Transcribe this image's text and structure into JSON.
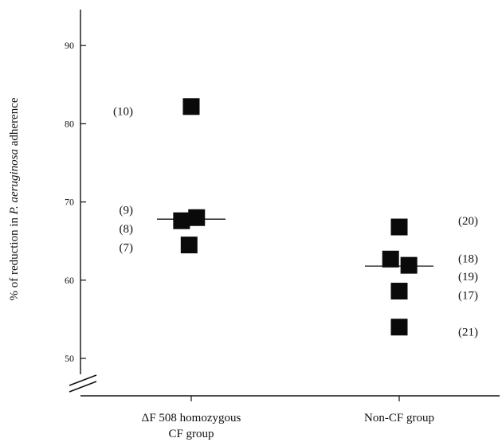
{
  "chart_data": {
    "type": "scatter",
    "title": "",
    "ylabel_parts": [
      "% of reduction in ",
      "P. aeruginosa",
      " adherence"
    ],
    "xlabel": "",
    "ylim": [
      50,
      90
    ],
    "yticks": [
      50,
      60,
      70,
      80,
      90
    ],
    "axis_break": true,
    "grid": false,
    "categories": [
      {
        "lines": [
          "ΔF 508 homozygous",
          "CF group"
        ]
      },
      {
        "lines": [
          "Non-CF group"
        ]
      }
    ],
    "series": [
      {
        "category": 0,
        "points": [
          {
            "y": 82.2,
            "offset": 0.0
          },
          {
            "y": 67.6,
            "offset": -0.45
          },
          {
            "y": 68.0,
            "offset": 0.25
          },
          {
            "y": 64.5,
            "offset": -0.1
          }
        ],
        "median": 67.8
      },
      {
        "category": 1,
        "points": [
          {
            "y": 66.8,
            "offset": 0.0
          },
          {
            "y": 62.7,
            "offset": -0.4
          },
          {
            "y": 61.9,
            "offset": 0.45
          },
          {
            "y": 58.6,
            "offset": 0.0
          },
          {
            "y": 54.0,
            "offset": 0.0
          }
        ],
        "median": 61.8
      }
    ],
    "annotations": [
      {
        "text": "(10)",
        "category": 0,
        "y": 81.6,
        "side": "left"
      },
      {
        "text": "(9)",
        "category": 0,
        "y": 69.0,
        "side": "left"
      },
      {
        "text": "(8)",
        "category": 0,
        "y": 66.6,
        "side": "left"
      },
      {
        "text": "(7)",
        "category": 0,
        "y": 64.2,
        "side": "left"
      },
      {
        "text": "(20)",
        "category": 1,
        "y": 67.6,
        "side": "right"
      },
      {
        "text": "(18)",
        "category": 1,
        "y": 62.8,
        "side": "right"
      },
      {
        "text": "(19)",
        "category": 1,
        "y": 60.5,
        "side": "right"
      },
      {
        "text": "(17)",
        "category": 1,
        "y": 58.1,
        "side": "right"
      },
      {
        "text": "(21)",
        "category": 1,
        "y": 53.4,
        "side": "right"
      }
    ]
  }
}
